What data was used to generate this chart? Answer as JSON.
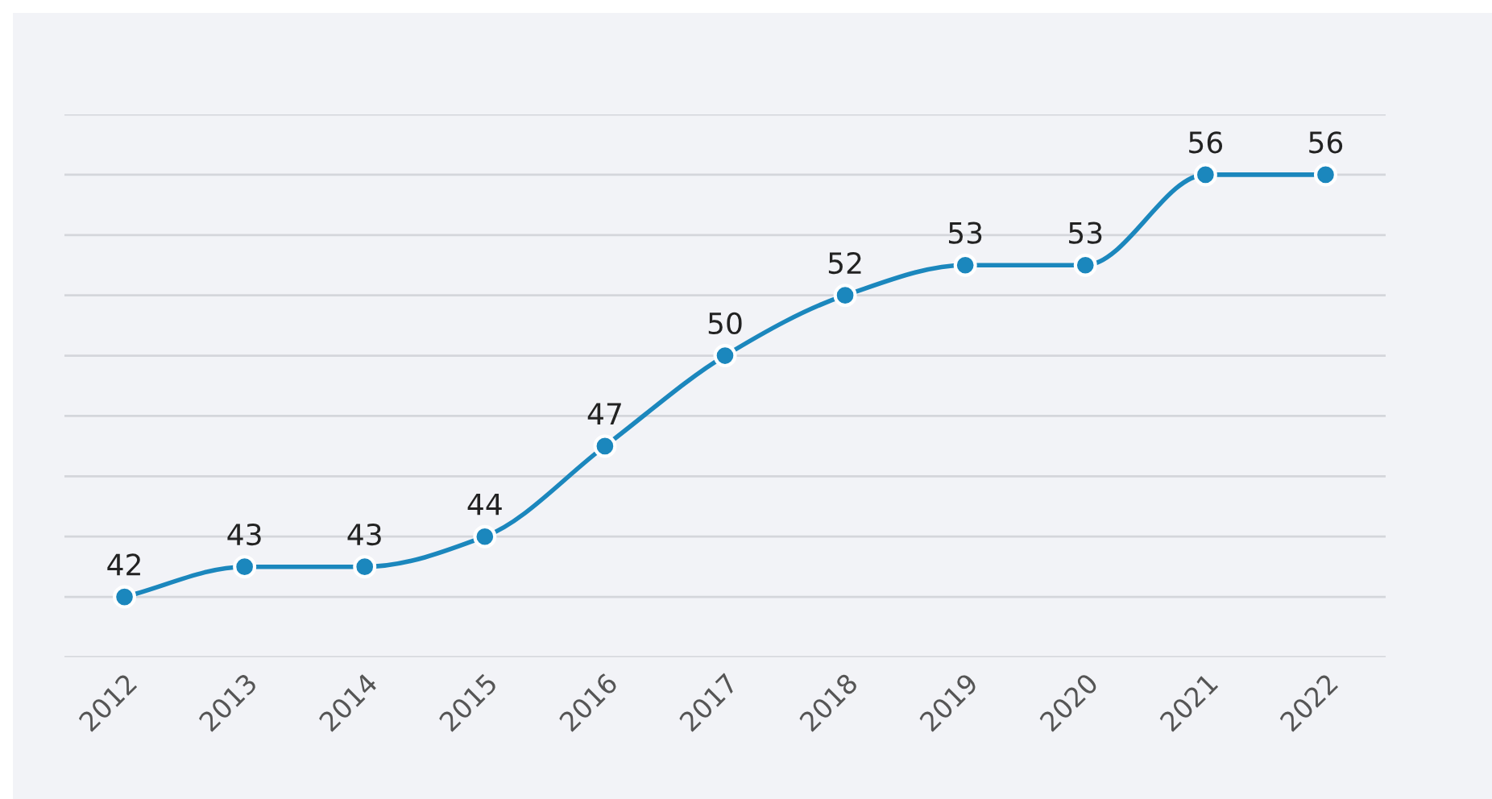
{
  "chart_data": {
    "type": "line",
    "categories": [
      "2012",
      "2013",
      "2014",
      "2015",
      "2016",
      "2017",
      "2018",
      "2019",
      "2020",
      "2021",
      "2022"
    ],
    "series": [
      {
        "color": "#1b87bd",
        "values": [
          42,
          43,
          43,
          44,
          47,
          50,
          52,
          53,
          53,
          56,
          56
        ]
      }
    ],
    "ylim": [
      40,
      58
    ],
    "yticks": [
      {
        "value": 40,
        "label": null
      },
      {
        "value": 42,
        "label": null
      },
      {
        "value": 44,
        "label": null
      },
      {
        "value": 46,
        "label": null
      },
      {
        "value": 48,
        "label": null
      },
      {
        "value": 50,
        "label": null
      },
      {
        "value": 52,
        "label": null
      },
      {
        "value": 54,
        "label": null
      },
      {
        "value": 56,
        "label": null
      },
      {
        "value": 58,
        "label": null
      }
    ],
    "tick_labels": "x",
    "grid": "y",
    "marker": "circle",
    "line_style": "solid",
    "data_labels": true
  }
}
